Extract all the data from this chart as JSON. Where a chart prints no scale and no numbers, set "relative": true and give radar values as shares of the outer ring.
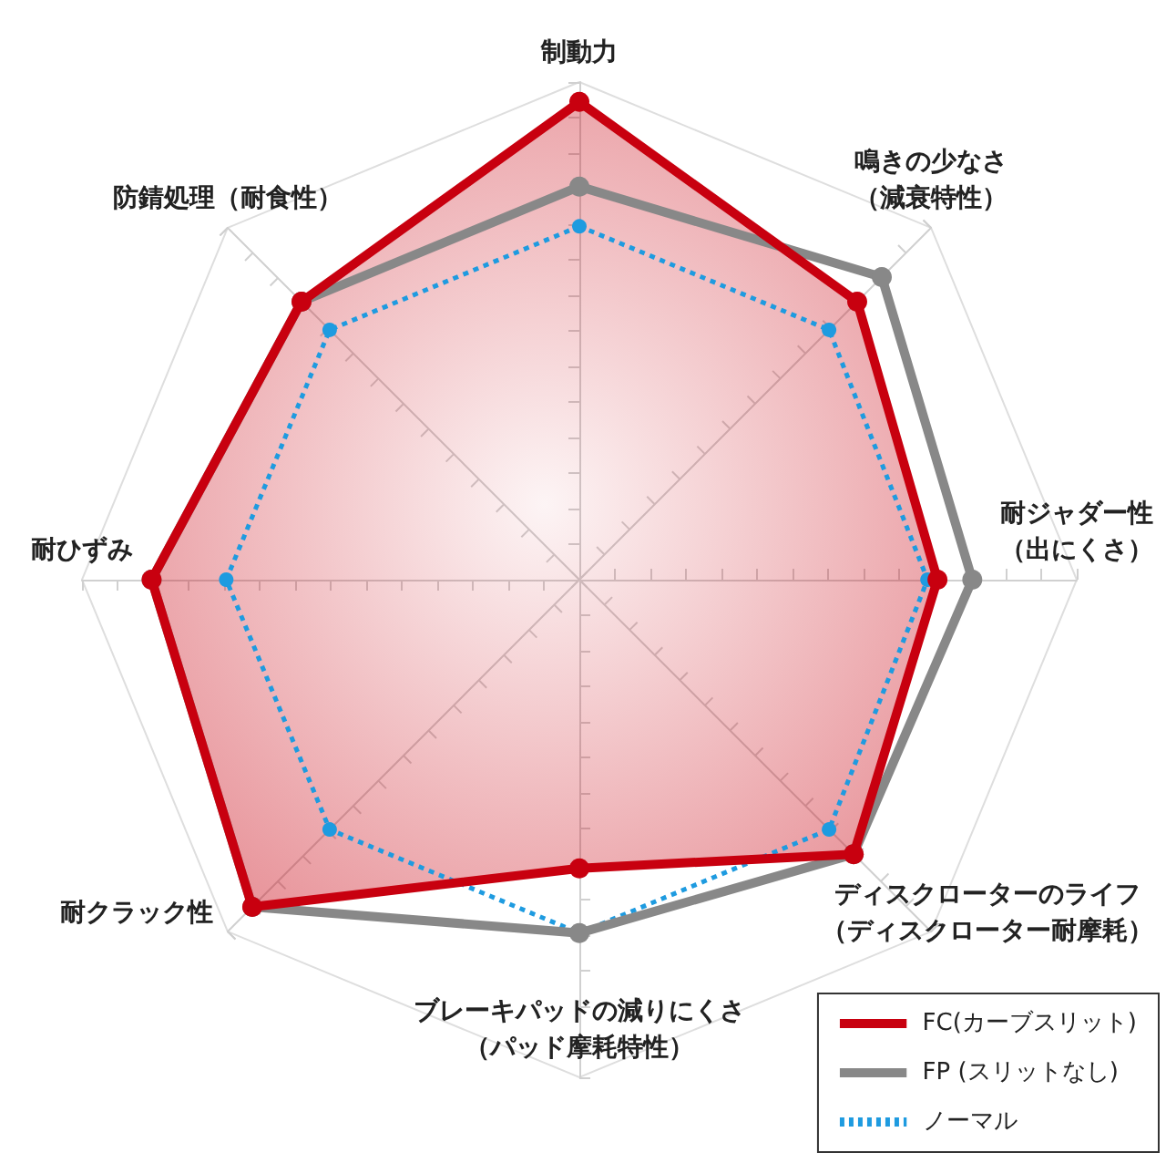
{
  "chart_data": {
    "type": "radar",
    "relative": true,
    "categories": [
      "制動力",
      "鳴きの少なさ（減衰特性）",
      "耐ジャダー性（出にくさ）",
      "ディスクローターのライフ（ディスクローター耐摩耗）",
      "ブレーキパッドの減りにくさ（パッド摩耗特性）",
      "耐クラック性",
      "耐ひずみ",
      "防錆処理（耐食性）"
    ],
    "series": [
      {
        "name": "FC(カーブスリット)",
        "color": "#c8000f",
        "line_style": "solid",
        "values": [
          0.96,
          0.79,
          0.72,
          0.78,
          0.58,
          0.93,
          0.86,
          0.79
        ]
      },
      {
        "name": "FP (スリットなし)",
        "color": "#888888",
        "line_style": "solid",
        "values": [
          0.79,
          0.86,
          0.79,
          0.78,
          0.71,
          0.93,
          0.86,
          0.79
        ]
      },
      {
        "name": "ノーマル",
        "color": "#1e9be0",
        "line_style": "dotted",
        "values": [
          0.71,
          0.71,
          0.7,
          0.71,
          0.71,
          0.71,
          0.71,
          0.71
        ]
      }
    ],
    "marker": "circle",
    "legend": "bottom right"
  }
}
